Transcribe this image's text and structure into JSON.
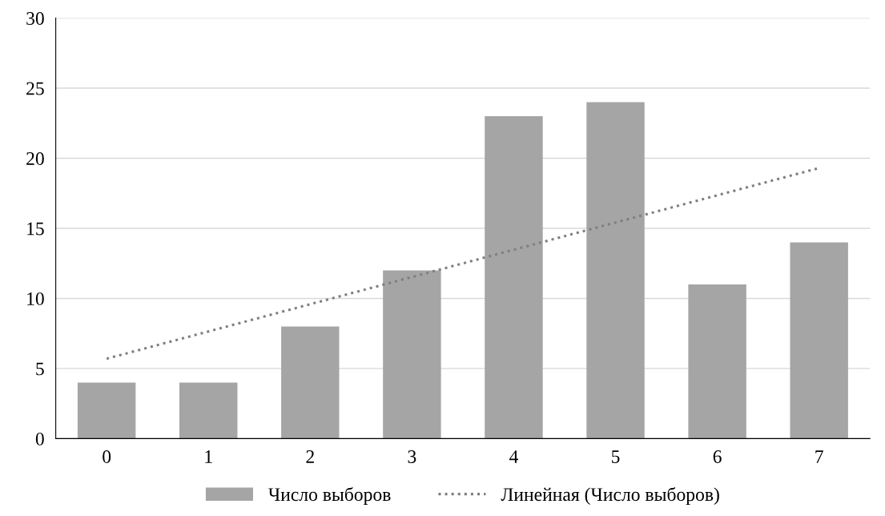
{
  "chart_data": {
    "type": "bar",
    "categories": [
      "0",
      "1",
      "2",
      "3",
      "4",
      "5",
      "6",
      "7"
    ],
    "series": [
      {
        "name": "Число выборов",
        "color": "#a5a5a5",
        "values": [
          4,
          4,
          8,
          12,
          23,
          24,
          11,
          14
        ]
      },
      {
        "name": "Линейная (Число выборов)",
        "type": "line",
        "color": "#7f7f7f",
        "line_style": "dotted",
        "x": [
          "0",
          "7"
        ],
        "values": [
          5.7,
          19.3
        ]
      }
    ],
    "ylim": [
      0,
      30
    ],
    "yticks": [
      0,
      5,
      10,
      15,
      20,
      25,
      30
    ],
    "grid": "y",
    "legend": "bottom"
  }
}
